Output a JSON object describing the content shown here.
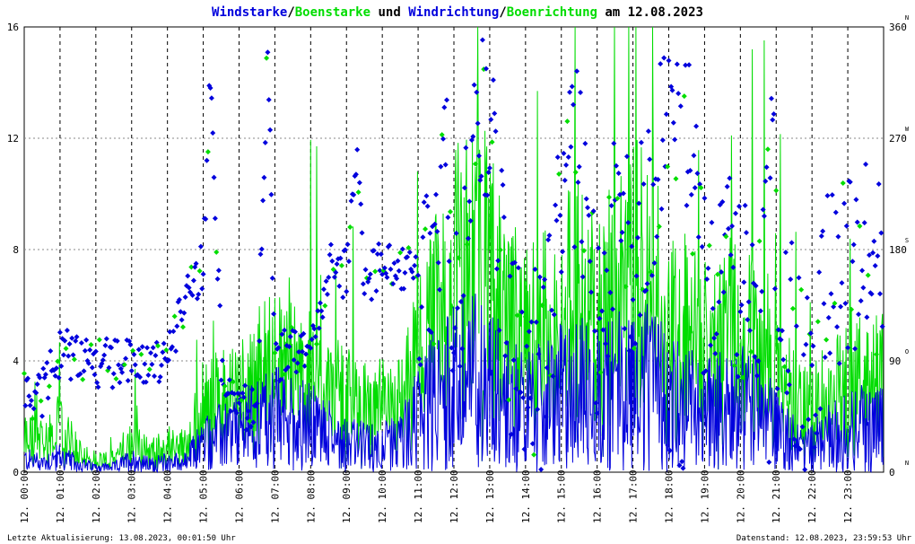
{
  "colors": {
    "wind": "#0000dd",
    "gust": "#00dd00",
    "grid": "#000000",
    "text": "#000000"
  },
  "chart_data": {
    "type": "line",
    "title_parts": [
      {
        "text": "Windstarke",
        "color": "#0000dd"
      },
      {
        "text": "/",
        "color": "#000000"
      },
      {
        "text": "Boenstarke",
        "color": "#00dd00"
      },
      {
        "text": " und ",
        "color": "#000000"
      },
      {
        "text": "Windrichtung",
        "color": "#0000dd"
      },
      {
        "text": "/",
        "color": "#000000"
      },
      {
        "text": "Boenrichtung",
        "color": "#00dd00"
      },
      {
        "text": " am 12.08.2023",
        "color": "#000000"
      }
    ],
    "x_axis": {
      "type": "time",
      "range_hours": [
        0,
        24
      ],
      "tick_labels": [
        "12. 00:00",
        "12. 01:00",
        "12. 02:00",
        "12. 03:00",
        "12. 04:00",
        "12. 05:00",
        "12. 06:00",
        "12. 07:00",
        "12. 08:00",
        "12. 09:00",
        "12. 10:00",
        "12. 11:00",
        "12. 12:00",
        "12. 13:00",
        "12. 14:00",
        "12. 15:00",
        "12. 16:00",
        "12. 17:00",
        "12. 18:00",
        "12. 19:00",
        "12. 20:00",
        "12. 21:00",
        "12. 22:00",
        "12. 23:00"
      ]
    },
    "y_left": {
      "ticks": [
        0,
        4,
        8,
        12,
        16
      ],
      "range": [
        0,
        16
      ]
    },
    "y_right": {
      "ticks": [
        0,
        90,
        180,
        270,
        360
      ],
      "range": [
        0,
        360
      ],
      "compass": [
        "N",
        "O",
        "S",
        "W",
        "N"
      ]
    },
    "grid": true,
    "series": [
      {
        "name": "Windstarke",
        "color": "#0000dd",
        "kind": "line"
      },
      {
        "name": "Boenstarke",
        "color": "#00dd00",
        "kind": "line"
      },
      {
        "name": "Windrichtung",
        "color": "#0000dd",
        "kind": "scatter"
      },
      {
        "name": "Boenrichtung",
        "color": "#00dd00",
        "kind": "scatter"
      }
    ],
    "speed_profile": [
      [
        0,
        0.5
      ],
      [
        0.5,
        0.4
      ],
      [
        1,
        0.6
      ],
      [
        1.5,
        0.3
      ],
      [
        2,
        0.2
      ],
      [
        2.5,
        0.2
      ],
      [
        3,
        0.5
      ],
      [
        3.5,
        0.3
      ],
      [
        4,
        0.4
      ],
      [
        4.5,
        0.4
      ],
      [
        5,
        1.2
      ],
      [
        5.5,
        1.4
      ],
      [
        6,
        1.6
      ],
      [
        6.5,
        2.0
      ],
      [
        7,
        2.2
      ],
      [
        7.5,
        2.0
      ],
      [
        8,
        1.8
      ],
      [
        8.5,
        1.5
      ],
      [
        9,
        1.2
      ],
      [
        9.5,
        1.0
      ],
      [
        10,
        1.0
      ],
      [
        10.5,
        1.2
      ],
      [
        11,
        2.2
      ],
      [
        11.5,
        3.0
      ],
      [
        12,
        3.4
      ],
      [
        12.5,
        3.8
      ],
      [
        13,
        3.6
      ],
      [
        13.5,
        2.8
      ],
      [
        14,
        2.5
      ],
      [
        14.5,
        2.6
      ],
      [
        15,
        3.0
      ],
      [
        15.5,
        3.2
      ],
      [
        16,
        2.9
      ],
      [
        16.5,
        3.4
      ],
      [
        17,
        3.6
      ],
      [
        17.5,
        3.3
      ],
      [
        18,
        2.8
      ],
      [
        18.5,
        2.6
      ],
      [
        19,
        2.4
      ],
      [
        19.5,
        2.5
      ],
      [
        20,
        2.6
      ],
      [
        20.5,
        2.4
      ],
      [
        21,
        1.8
      ],
      [
        21.5,
        1.2
      ],
      [
        22,
        1.0
      ],
      [
        22.5,
        1.4
      ],
      [
        23,
        1.6
      ],
      [
        23.5,
        1.8
      ],
      [
        24,
        1.8
      ]
    ],
    "gust_profile": [
      [
        0,
        1.5
      ],
      [
        0.5,
        1.2
      ],
      [
        1,
        1.8
      ],
      [
        1.5,
        0.8
      ],
      [
        2,
        0.5
      ],
      [
        2.5,
        0.5
      ],
      [
        3,
        1.3
      ],
      [
        3.5,
        0.8
      ],
      [
        4,
        1.0
      ],
      [
        4.5,
        1.0
      ],
      [
        5,
        2.6
      ],
      [
        5.5,
        2.8
      ],
      [
        6,
        3.2
      ],
      [
        6.5,
        3.8
      ],
      [
        7,
        4.2
      ],
      [
        7.5,
        4.0
      ],
      [
        8,
        3.6
      ],
      [
        8.5,
        3.2
      ],
      [
        9,
        2.8
      ],
      [
        9.5,
        2.5
      ],
      [
        10,
        2.6
      ],
      [
        10.5,
        2.8
      ],
      [
        11,
        4.4
      ],
      [
        11.5,
        6.0
      ],
      [
        12,
        7.2
      ],
      [
        12.5,
        8.2
      ],
      [
        13,
        7.6
      ],
      [
        13.5,
        5.8
      ],
      [
        14,
        5.2
      ],
      [
        14.5,
        5.4
      ],
      [
        15,
        6.2
      ],
      [
        15.5,
        6.8
      ],
      [
        16,
        6.0
      ],
      [
        16.5,
        7.0
      ],
      [
        17,
        7.6
      ],
      [
        17.5,
        7.0
      ],
      [
        18,
        5.8
      ],
      [
        18.5,
        5.4
      ],
      [
        19,
        5.0
      ],
      [
        19.5,
        5.2
      ],
      [
        20,
        5.4
      ],
      [
        20.5,
        5.0
      ],
      [
        21,
        4.0
      ],
      [
        21.5,
        2.8
      ],
      [
        22,
        2.4
      ],
      [
        22.5,
        3.0
      ],
      [
        23,
        3.4
      ],
      [
        23.5,
        3.6
      ],
      [
        24,
        3.6
      ]
    ],
    "direction_profile": [
      [
        0,
        60
      ],
      [
        0.5,
        65
      ],
      [
        1,
        95
      ],
      [
        1.5,
        95
      ],
      [
        2,
        88
      ],
      [
        2.5,
        88
      ],
      [
        3,
        95
      ],
      [
        3.5,
        90
      ],
      [
        4,
        92
      ],
      [
        4.2,
        115
      ],
      [
        4.5,
        140
      ],
      [
        5,
        170
      ],
      [
        5.2,
        330
      ],
      [
        5.5,
        90
      ],
      [
        6,
        50
      ],
      [
        6.5,
        60
      ],
      [
        6.8,
        350
      ],
      [
        7,
        90
      ],
      [
        7.5,
        100
      ],
      [
        8,
        95
      ],
      [
        8.5,
        165
      ],
      [
        9,
        160
      ],
      [
        9.3,
        260
      ],
      [
        9.5,
        150
      ],
      [
        10,
        170
      ],
      [
        10.5,
        165
      ],
      [
        11,
        160
      ],
      [
        11.5,
        150
      ],
      [
        11.8,
        320
      ],
      [
        12,
        110
      ],
      [
        12.5,
        240
      ],
      [
        13,
        290
      ],
      [
        13.5,
        110
      ],
      [
        14,
        90
      ],
      [
        14.5,
        80
      ],
      [
        15,
        210
      ],
      [
        15.5,
        260
      ],
      [
        16,
        110
      ],
      [
        16.5,
        200
      ],
      [
        17,
        170
      ],
      [
        17.5,
        220
      ],
      [
        18,
        330
      ],
      [
        18.5,
        290
      ],
      [
        19,
        150
      ],
      [
        19.5,
        170
      ],
      [
        20,
        140
      ],
      [
        20.5,
        150
      ],
      [
        20.8,
        330
      ],
      [
        21,
        150
      ],
      [
        21.5,
        100
      ],
      [
        22,
        60
      ],
      [
        22.5,
        160
      ],
      [
        23,
        160
      ],
      [
        23.5,
        170
      ],
      [
        24,
        160
      ]
    ]
  },
  "footer": {
    "last_update": "Letzte Aktualisierung: 13.08.2023, 00:01:50 Uhr",
    "data_status": "Datenstand: 12.08.2023, 23:59:53 Uhr"
  }
}
